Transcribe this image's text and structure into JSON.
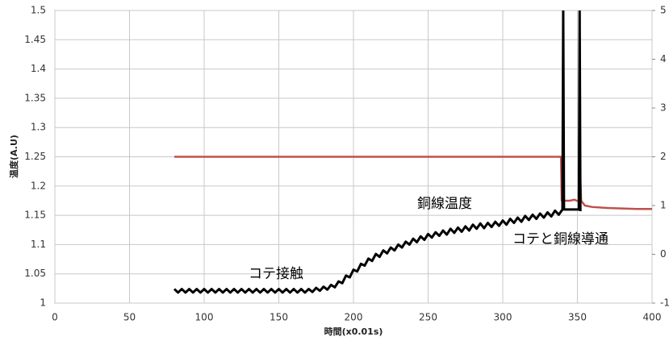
{
  "chart_data": {
    "type": "line",
    "xlabel": "時間(x0.01s)",
    "ylabel": "温度(A.U)",
    "annotations": [
      "銅線温度",
      "コテ接触",
      "コテと銅線導通"
    ],
    "xlim": [
      0,
      400
    ],
    "xticks": [
      0,
      50,
      100,
      150,
      200,
      250,
      300,
      350,
      400
    ],
    "ylim": [
      1,
      1.5
    ],
    "yticks": [
      1,
      1.05,
      1.1,
      1.15,
      1.2,
      1.25,
      1.3,
      1.35,
      1.4,
      1.45,
      1.5
    ],
    "y2lim": [
      -1,
      5
    ],
    "y2ticks": [
      -1,
      0,
      1,
      2,
      3,
      4,
      5
    ],
    "grid": true,
    "series": [
      {
        "color": "#c0504d",
        "axis": "y2",
        "x": [
          80,
          339,
          339.5,
          345,
          348,
          351,
          351.5,
          352.5,
          355,
          360,
          370,
          380,
          390,
          400
        ],
        "values": [
          2,
          2,
          1.1,
          1.1,
          1.12,
          1.08,
          2,
          1.1,
          1,
          0.97,
          0.95,
          0.94,
          0.93,
          0.93
        ]
      },
      {
        "color": "#000000",
        "x": [
          80,
          82.5,
          85,
          87.5,
          90,
          92.5,
          95,
          97.5,
          100,
          102.5,
          105,
          107.5,
          110,
          112.5,
          115,
          117.5,
          120,
          122.5,
          125,
          127.5,
          130,
          132.5,
          135,
          137.5,
          140,
          142.5,
          145,
          147.5,
          150,
          152.5,
          155,
          157.5,
          160,
          162.5,
          165,
          167.5,
          170,
          172.5,
          175,
          177.5,
          180,
          182.5,
          185,
          187.5,
          190,
          192.5,
          195,
          197.5,
          200,
          202.5,
          205,
          207.5,
          210,
          212.5,
          215,
          217.5,
          220,
          222.5,
          225,
          227.5,
          230,
          232.5,
          235,
          237.5,
          240,
          242.5,
          245,
          247.5,
          250,
          252.5,
          255,
          257.5,
          260,
          262.5,
          265,
          267.5,
          270,
          272.5,
          275,
          277.5,
          280,
          282.5,
          285,
          287.5,
          290,
          292.5,
          295,
          297.5,
          300,
          302.5,
          305,
          307.5,
          310,
          312.5,
          315,
          317.5,
          320,
          322.5,
          325,
          327.5,
          330,
          332.5,
          335,
          337.5,
          340,
          340.5,
          341,
          351,
          351.5,
          352
        ],
        "values": [
          1.024,
          1.018,
          1.024,
          1.018,
          1.024,
          1.018,
          1.024,
          1.018,
          1.024,
          1.018,
          1.024,
          1.018,
          1.024,
          1.018,
          1.024,
          1.018,
          1.024,
          1.018,
          1.024,
          1.018,
          1.024,
          1.018,
          1.024,
          1.018,
          1.024,
          1.018,
          1.024,
          1.018,
          1.024,
          1.018,
          1.024,
          1.018,
          1.024,
          1.018,
          1.024,
          1.018,
          1.024,
          1.019,
          1.026,
          1.021,
          1.028,
          1.023,
          1.031,
          1.027,
          1.037,
          1.034,
          1.047,
          1.044,
          1.057,
          1.054,
          1.067,
          1.064,
          1.076,
          1.072,
          1.084,
          1.079,
          1.09,
          1.085,
          1.095,
          1.09,
          1.1,
          1.095,
          1.105,
          1.1,
          1.11,
          1.104,
          1.114,
          1.108,
          1.118,
          1.112,
          1.121,
          1.115,
          1.124,
          1.117,
          1.127,
          1.12,
          1.129,
          1.122,
          1.131,
          1.124,
          1.134,
          1.127,
          1.136,
          1.128,
          1.137,
          1.13,
          1.139,
          1.132,
          1.141,
          1.134,
          1.144,
          1.137,
          1.146,
          1.139,
          1.149,
          1.142,
          1.151,
          1.144,
          1.153,
          1.146,
          1.155,
          1.148,
          1.158,
          1.151,
          1.16,
          1.5,
          1.16,
          1.16,
          1.5,
          1.157
        ]
      }
    ]
  }
}
